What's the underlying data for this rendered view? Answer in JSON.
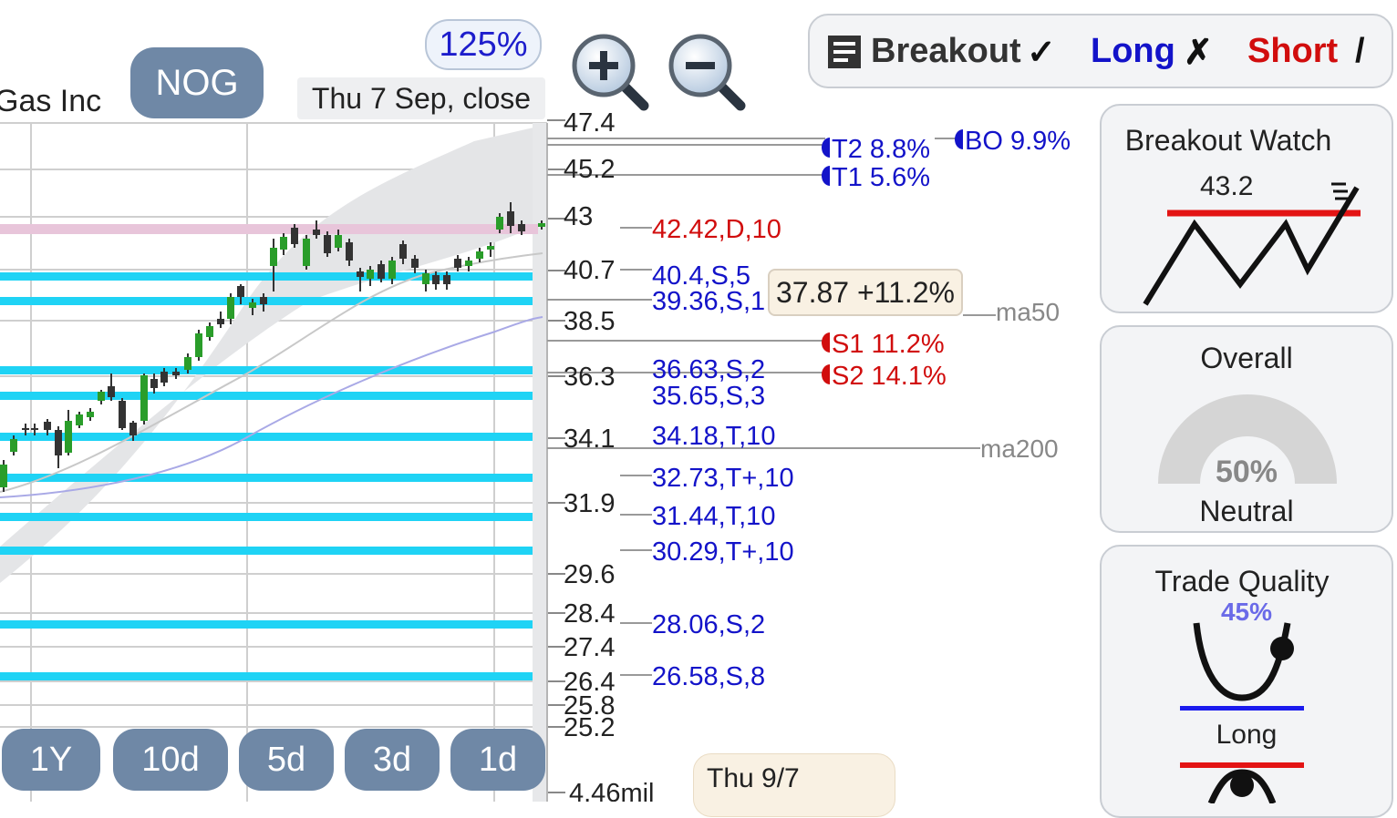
{
  "company": {
    "name_fragment": "Gas Inc"
  },
  "ticker": "NOG",
  "zoom": "125%",
  "quote_time": "Thu 7 Sep, close",
  "toolbar": {
    "zoom_in": "zoom-in",
    "zoom_out": "zoom-out"
  },
  "price_axis": [
    "47.4",
    "45.2",
    "43",
    "40.7",
    "38.5",
    "36.3",
    "34.1",
    "31.9",
    "29.6",
    "28.4",
    "27.4",
    "26.4",
    "25.8",
    "25.2"
  ],
  "volume_label": "4.46mil",
  "levels": [
    {
      "text": "42.42,D,10",
      "color": "red"
    },
    {
      "text": "40.4,S,5",
      "color": "blue"
    },
    {
      "text": "39.36,S,1",
      "color": "blue"
    },
    {
      "text": "36.63,S,2",
      "color": "blue"
    },
    {
      "text": "35.65,S,3",
      "color": "blue"
    },
    {
      "text": "34.18,T,10",
      "color": "blue"
    },
    {
      "text": "32.73,T+,10",
      "color": "blue"
    },
    {
      "text": "31.44,T,10",
      "color": "blue"
    },
    {
      "text": "30.29,T+,10",
      "color": "blue"
    },
    {
      "text": "28.06,S,2",
      "color": "blue"
    },
    {
      "text": "26.58,S,8",
      "color": "blue"
    }
  ],
  "targets": {
    "t2": "T2 8.8%",
    "t1": "T1 5.6%",
    "bo": "BO 9.9%",
    "s1": "S1 11.2%",
    "s2": "S2 14.1%"
  },
  "ma_labels": {
    "ma50": "ma50",
    "ma200": "ma200"
  },
  "price_tip": "37.87 +11.2%",
  "tip_date": "Thu 9/7",
  "ranges": [
    "1Y",
    "10d",
    "5d",
    "3d",
    "1d"
  ],
  "tags": {
    "breakout": "Breakout",
    "long": "Long",
    "short": "Short",
    "breakout_mark": "✓",
    "long_mark": "✗",
    "short_mark": "/"
  },
  "breakout_watch": {
    "title": "Breakout Watch",
    "value": "43.2"
  },
  "overall": {
    "title": "Overall",
    "percent": "50%",
    "label": "Neutral"
  },
  "trade_quality": {
    "title": "Trade Quality",
    "percent": "45%",
    "label": "Long"
  },
  "colors": {
    "support_band": "#1fd3f5",
    "resistance_band": "#e8c5da",
    "blue_text": "#1313c9",
    "red_text": "#d10d0d",
    "button": "#6f88a6"
  }
}
